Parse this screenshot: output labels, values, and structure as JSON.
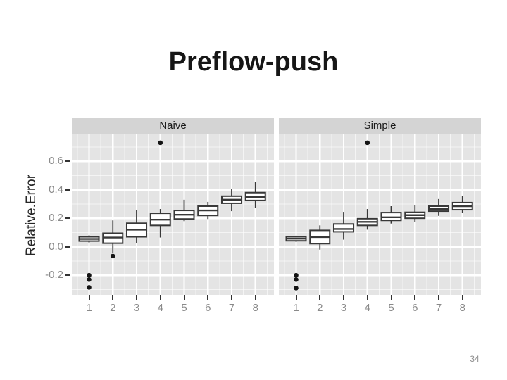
{
  "slide": {
    "title": "Preflow-push",
    "page_number": "34"
  },
  "chart_data": {
    "type": "boxplot",
    "ylabel": "Relative.Error",
    "y_tick_labels": [
      "0.6",
      "0.4",
      "0.2",
      "0.0",
      "-0.2"
    ],
    "y_ticks": [
      0.6,
      0.4,
      0.2,
      0.0,
      -0.2
    ],
    "y_minor_ticks": [
      0.7,
      0.5,
      0.3,
      0.1,
      -0.1,
      -0.3
    ],
    "x_tick_labels": [
      "1",
      "2",
      "3",
      "4",
      "5",
      "6",
      "7",
      "8"
    ],
    "ylim": [
      -0.34,
      0.79
    ],
    "grid": "white major+minor on gray panel",
    "legend": "none",
    "facets": [
      {
        "label": "Naive",
        "boxes": [
          {
            "category": "1",
            "whislo": 0.03,
            "q1": 0.04,
            "med": 0.055,
            "q3": 0.07,
            "whishi": 0.08,
            "outliers": [
              -0.2,
              -0.23,
              -0.285
            ]
          },
          {
            "category": "2",
            "whislo": -0.045,
            "q1": 0.025,
            "med": 0.065,
            "q3": 0.095,
            "whishi": 0.185,
            "outliers": [
              -0.065
            ]
          },
          {
            "category": "3",
            "whislo": 0.025,
            "q1": 0.07,
            "med": 0.12,
            "q3": 0.165,
            "whishi": 0.26,
            "outliers": []
          },
          {
            "category": "4",
            "whislo": 0.065,
            "q1": 0.15,
            "med": 0.19,
            "q3": 0.235,
            "whishi": 0.265,
            "outliers": [
              0.73
            ]
          },
          {
            "category": "5",
            "whislo": 0.18,
            "q1": 0.195,
            "med": 0.225,
            "q3": 0.255,
            "whishi": 0.33,
            "outliers": []
          },
          {
            "category": "6",
            "whislo": 0.195,
            "q1": 0.22,
            "med": 0.255,
            "q3": 0.285,
            "whishi": 0.315,
            "outliers": []
          },
          {
            "category": "7",
            "whislo": 0.25,
            "q1": 0.305,
            "med": 0.33,
            "q3": 0.355,
            "whishi": 0.405,
            "outliers": []
          },
          {
            "category": "8",
            "whislo": 0.275,
            "q1": 0.325,
            "med": 0.35,
            "q3": 0.38,
            "whishi": 0.455,
            "outliers": []
          }
        ]
      },
      {
        "label": "Simple",
        "boxes": [
          {
            "category": "1",
            "whislo": 0.035,
            "q1": 0.042,
            "med": 0.057,
            "q3": 0.07,
            "whishi": 0.078,
            "outliers": [
              -0.2,
              -0.23,
              -0.29
            ]
          },
          {
            "category": "2",
            "whislo": -0.02,
            "q1": 0.022,
            "med": 0.068,
            "q3": 0.115,
            "whishi": 0.15,
            "outliers": []
          },
          {
            "category": "3",
            "whislo": 0.05,
            "q1": 0.105,
            "med": 0.125,
            "q3": 0.16,
            "whishi": 0.245,
            "outliers": []
          },
          {
            "category": "4",
            "whislo": 0.12,
            "q1": 0.15,
            "med": 0.175,
            "q3": 0.197,
            "whishi": 0.265,
            "outliers": [
              0.73
            ]
          },
          {
            "category": "5",
            "whislo": 0.163,
            "q1": 0.185,
            "med": 0.207,
            "q3": 0.24,
            "whishi": 0.285,
            "outliers": []
          },
          {
            "category": "6",
            "whislo": 0.175,
            "q1": 0.2,
            "med": 0.222,
            "q3": 0.242,
            "whishi": 0.29,
            "outliers": []
          },
          {
            "category": "7",
            "whislo": 0.217,
            "q1": 0.25,
            "med": 0.265,
            "q3": 0.285,
            "whishi": 0.335,
            "outliers": []
          },
          {
            "category": "8",
            "whislo": 0.24,
            "q1": 0.26,
            "med": 0.285,
            "q3": 0.31,
            "whishi": 0.355,
            "outliers": []
          }
        ]
      }
    ],
    "colors": {
      "panel_bg": "#e4e4e4",
      "strip_bg": "#d4d4d4",
      "grid": "#ffffff",
      "box_stroke": "#383838",
      "box_fill": "#ffffff",
      "outlier": "#141414",
      "axis_text": "#8a8a8a",
      "tick_mark": "#333333",
      "title_text": "#161616",
      "strip_text": "#1a1a1a",
      "page_number": "#8f8f8f"
    }
  }
}
